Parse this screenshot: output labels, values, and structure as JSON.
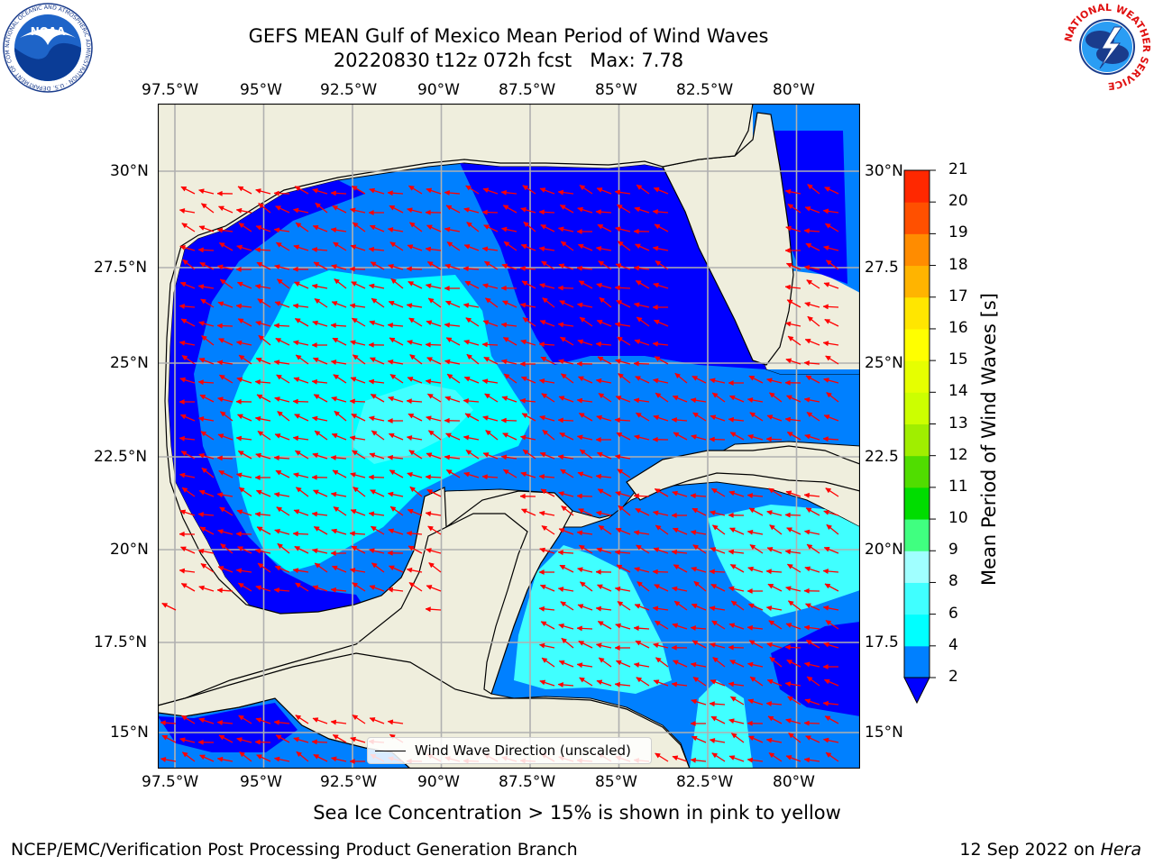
{
  "title": {
    "line1": "GEFS MEAN Gulf of Mexico Mean Period of Wind Waves",
    "line2": "20220830 t12z 072h fcst   Max: 7.78"
  },
  "map": {
    "lon_ticks": [
      "97.5°W",
      "95°W",
      "92.5°W",
      "90°W",
      "87.5°W",
      "85°W",
      "82.5°W",
      "80°W"
    ],
    "lat_ticks_left": [
      "30°N",
      "27.5°N",
      "25°N",
      "22.5°N",
      "20°N",
      "17.5°N",
      "15°N"
    ],
    "lat_ticks_right": [
      "30°N",
      "27.5",
      "25°N",
      "22.5",
      "20°N",
      "17.5",
      "15°N"
    ],
    "colors": {
      "land": "#efeedd",
      "coast": "#000000",
      "grid": "#b0b0b0",
      "arrow": "#ff0000"
    }
  },
  "legend": {
    "label": "Wind Wave Direction (unscaled)"
  },
  "colorbar": {
    "label": "Mean Period of Wind Waves [s]",
    "ticks": [
      "2",
      "4",
      "6",
      "8",
      "9",
      "10",
      "11",
      "12",
      "13",
      "14",
      "15",
      "16",
      "17",
      "18",
      "19",
      "20",
      "21"
    ],
    "colors": [
      "#0080ff",
      "#00ffff",
      "#40ffff",
      "#a0ffff",
      "#40ff80",
      "#00dd00",
      "#50dd00",
      "#a0ee00",
      "#ccff00",
      "#e6ff00",
      "#ffff00",
      "#ffe600",
      "#ffb400",
      "#ff8c00",
      "#ff5000",
      "#ff2800",
      "#ff0000"
    ],
    "under_color": "#0000ff"
  },
  "note": "Sea Ice Concentration > 15% is shown in pink to yellow",
  "footer": {
    "left": "NCEP/EMC/Verification Post Processing Product Generation Branch",
    "right_date": "12 Sep 2022 on ",
    "right_host": "Hera"
  },
  "logos": {
    "noaa": {
      "text": "NOAA",
      "ring_text": "NATIONAL OCEANIC AND ATMOSPHERIC ADMINISTRATION · U.S. DEPARTMENT OF COMMERCE"
    },
    "nws": {
      "ring_text": "NATIONAL WEATHER SERVICE"
    }
  }
}
